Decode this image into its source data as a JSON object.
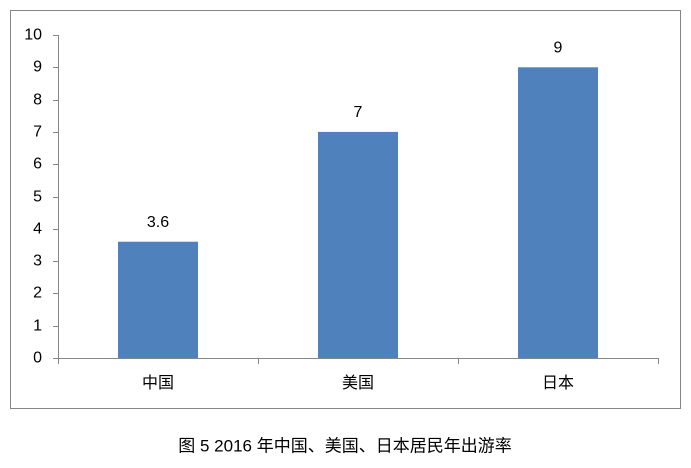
{
  "chart_data": {
    "type": "bar",
    "title": "图 5 2016 年中国、美国、日本居民年出游率",
    "categories": [
      "中国",
      "美国",
      "日本"
    ],
    "values": [
      3.6,
      7,
      9
    ],
    "color": "#4f81bd",
    "ylim": [
      0,
      10
    ],
    "yticks": [
      0,
      1,
      2,
      3,
      4,
      5,
      6,
      7,
      8,
      9,
      10
    ],
    "grid": false
  }
}
